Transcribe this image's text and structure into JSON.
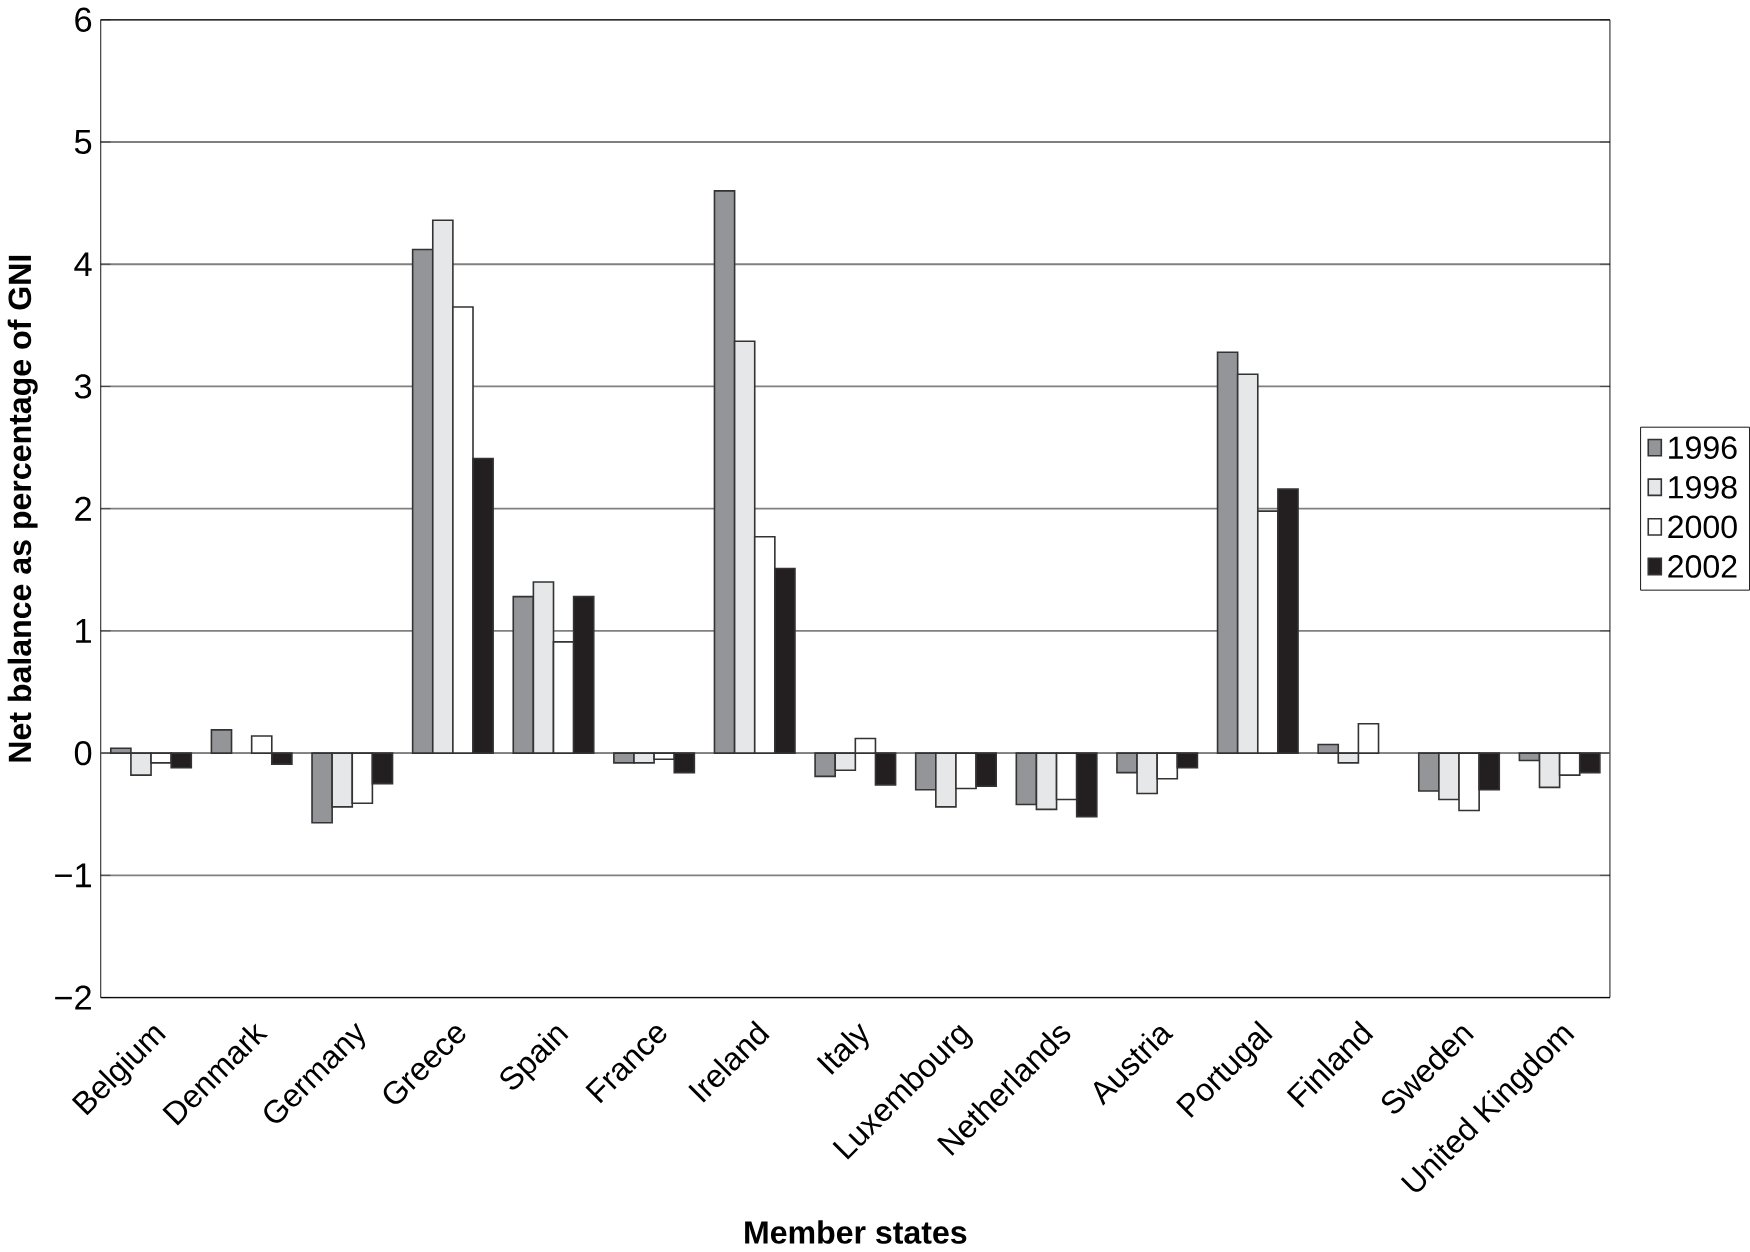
{
  "chart_data": {
    "type": "bar",
    "xlabel": "Member states",
    "ylabel": "Net balance as percentage of GNI",
    "categories": [
      "Belgium",
      "Denmark",
      "Germany",
      "Greece",
      "Spain",
      "France",
      "Ireland",
      "Italy",
      "Luxembourg",
      "Netherlands",
      "Austria",
      "Portugal",
      "Finland",
      "Sweden",
      "United Kingdom"
    ],
    "series": [
      {
        "name": "1996",
        "color": "#939598",
        "values": [
          0.04,
          0.19,
          -0.57,
          4.12,
          1.28,
          -0.08,
          4.6,
          -0.19,
          -0.3,
          -0.42,
          -0.16,
          3.28,
          0.07,
          -0.31,
          -0.06
        ]
      },
      {
        "name": "1998",
        "color": "#e6e7e8",
        "values": [
          -0.18,
          null,
          -0.44,
          4.36,
          1.4,
          -0.08,
          3.37,
          -0.14,
          -0.44,
          -0.46,
          -0.33,
          3.1,
          -0.08,
          -0.38,
          -0.28
        ]
      },
      {
        "name": "2000",
        "color": "#ffffff",
        "values": [
          -0.08,
          0.14,
          -0.41,
          3.65,
          0.91,
          -0.05,
          1.77,
          0.12,
          -0.29,
          -0.38,
          -0.21,
          1.98,
          0.24,
          -0.47,
          -0.18
        ]
      },
      {
        "name": "2002",
        "color": "#231f20",
        "values": [
          -0.12,
          -0.09,
          -0.25,
          2.41,
          1.28,
          -0.16,
          1.51,
          -0.26,
          -0.27,
          -0.52,
          -0.12,
          2.16,
          null,
          -0.3,
          -0.16
        ]
      }
    ],
    "ylim": [
      -2,
      6
    ],
    "yticks": [
      {
        "value": -2,
        "label": "−2"
      },
      {
        "value": -1,
        "label": "−1"
      },
      0,
      1,
      2,
      3,
      4,
      5,
      6
    ],
    "grid": "y",
    "legend": "right"
  }
}
